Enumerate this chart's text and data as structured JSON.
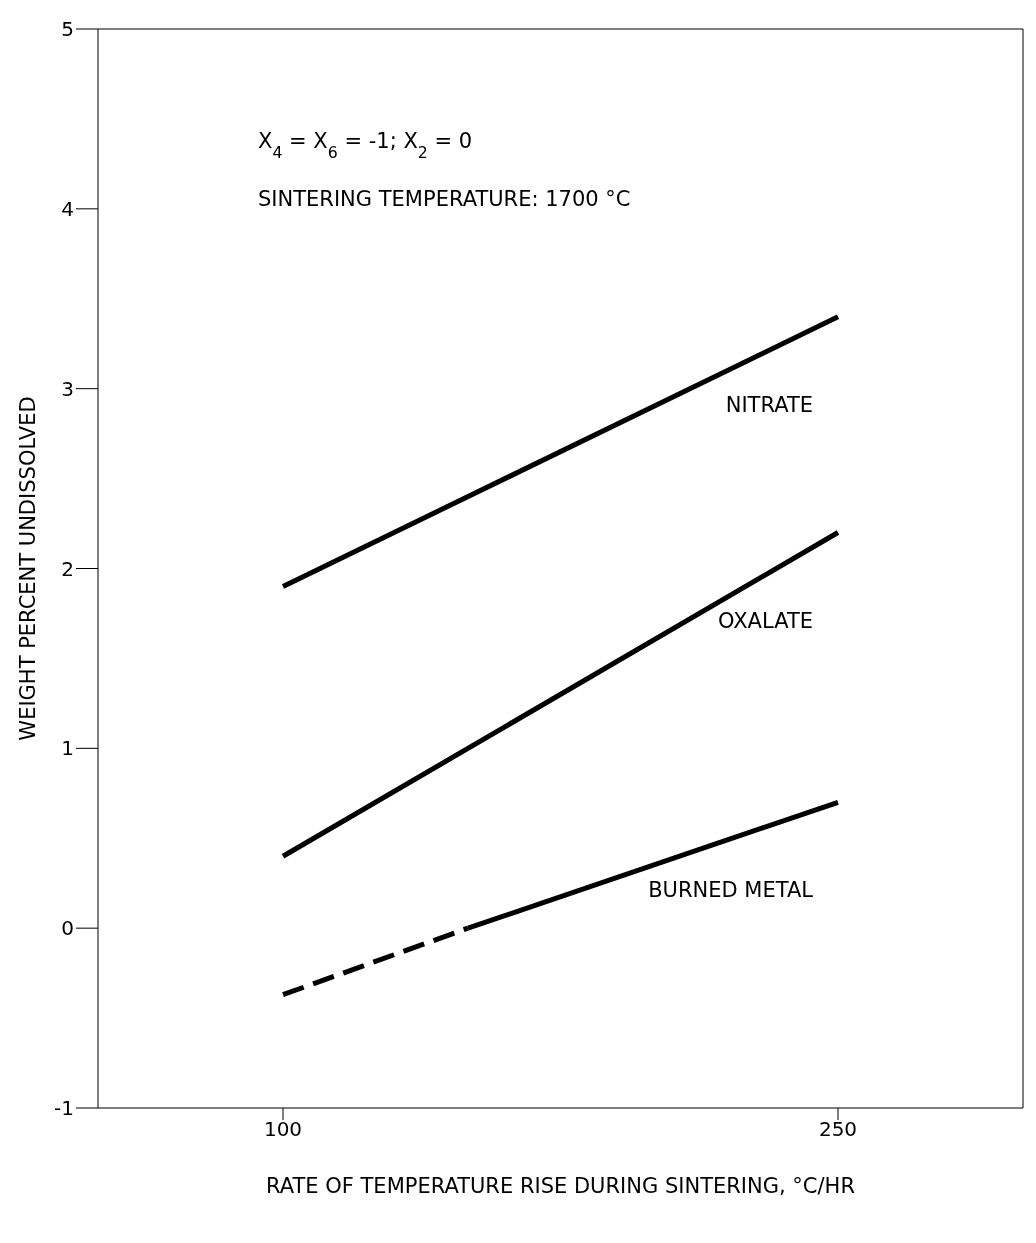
{
  "chart_data": {
    "type": "line",
    "xlabel": "RATE OF TEMPERATURE RISE DURING SINTERING, °C/HR",
    "ylabel": "WEIGHT PERCENT UNDISSOLVED",
    "annotations": [
      "X$_{4}$ = X$_{6}$ = -1; X$_{2}$ = 0",
      "SINTERING TEMPERATURE: 1700 °C"
    ],
    "xlim": [
      50,
      300
    ],
    "xticks": [
      100,
      250
    ],
    "ylim": [
      -1,
      5
    ],
    "yticks": [
      -1,
      0,
      1,
      2,
      3,
      4,
      5
    ],
    "marker": "none",
    "series": [
      {
        "name": "NITRATE",
        "color": "#000000",
        "x": [
          100,
          250
        ],
        "values": [
          1.9,
          3.4
        ]
      },
      {
        "name": "OXALATE",
        "color": "#000000",
        "x": [
          100,
          250
        ],
        "values": [
          0.4,
          2.2
        ]
      },
      {
        "color": "#000000",
        "x": [
          100,
          150
        ],
        "values": [
          -0.37,
          0
        ],
        "line_style": "dashed"
      },
      {
        "name": "BURNED METAL",
        "color": "#000000",
        "x": [
          150,
          250
        ],
        "values": [
          0,
          0.7
        ]
      }
    ]
  }
}
